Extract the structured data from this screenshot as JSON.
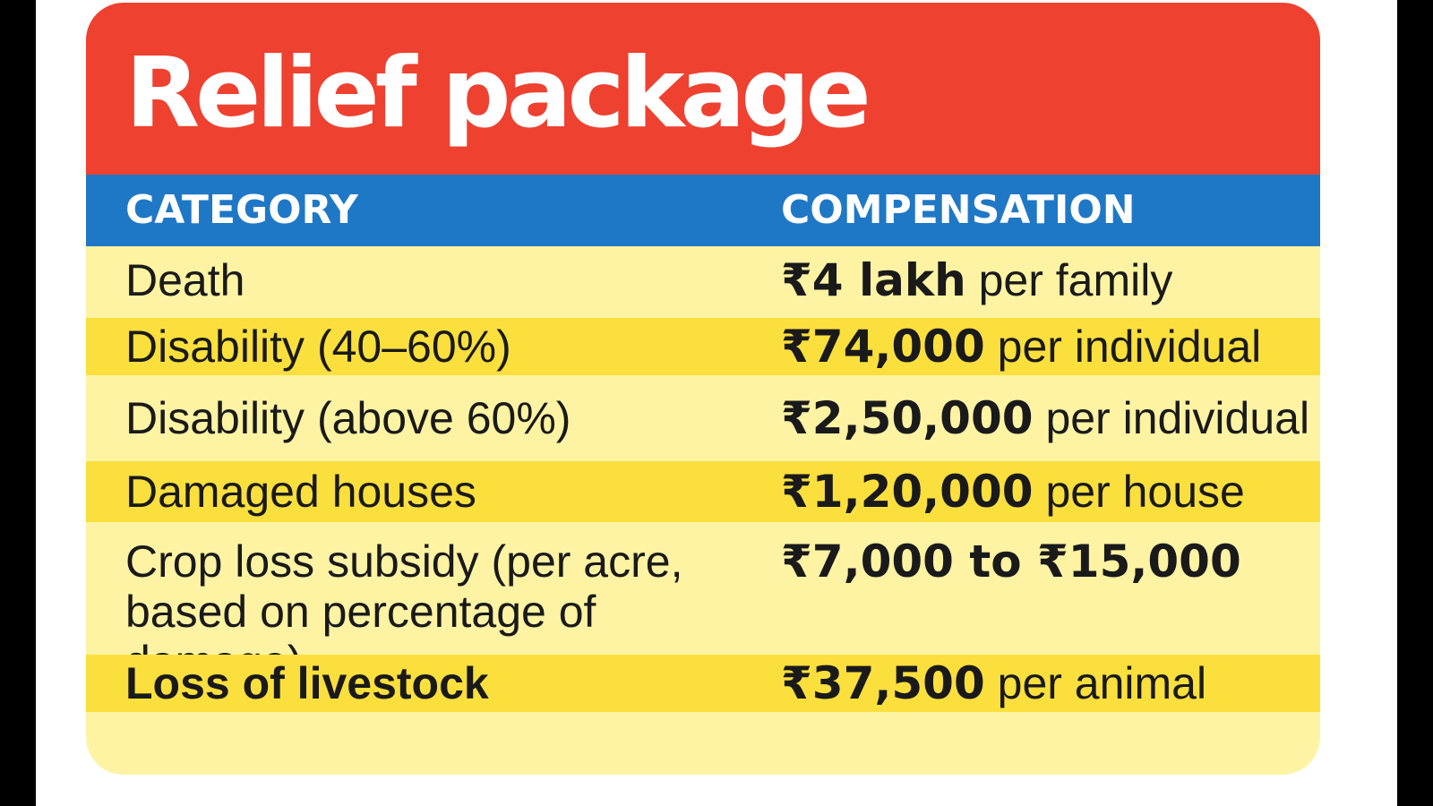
{
  "title": "Relief package",
  "headers": {
    "category": "CATEGORY",
    "compensation": "COMPENSATION"
  },
  "rows": [
    {
      "category": "Death",
      "amount": "₹4 lakh",
      "unit": "per family"
    },
    {
      "category": "Disability (40–60%)",
      "amount": "₹74,000",
      "unit": "per individual"
    },
    {
      "category": "Disability (above 60%)",
      "amount": "₹2,50,000",
      "unit": "per individual"
    },
    {
      "category": "Damaged houses",
      "amount": "₹1,20,000",
      "unit": "per house"
    },
    {
      "category": "Crop loss subsidy (per acre, based on percentage of damage)",
      "amount": "₹7,000 to ₹15,000",
      "unit": ""
    },
    {
      "category": "Loss of livestock",
      "amount": "₹37,500",
      "unit": "per animal"
    }
  ],
  "colors": {
    "title_bar": "#ee4130",
    "header_row": "#1f78c6",
    "row_light": "#fdf3a3",
    "row_dark": "#fbdf3d",
    "text": "#1a1a1a"
  }
}
